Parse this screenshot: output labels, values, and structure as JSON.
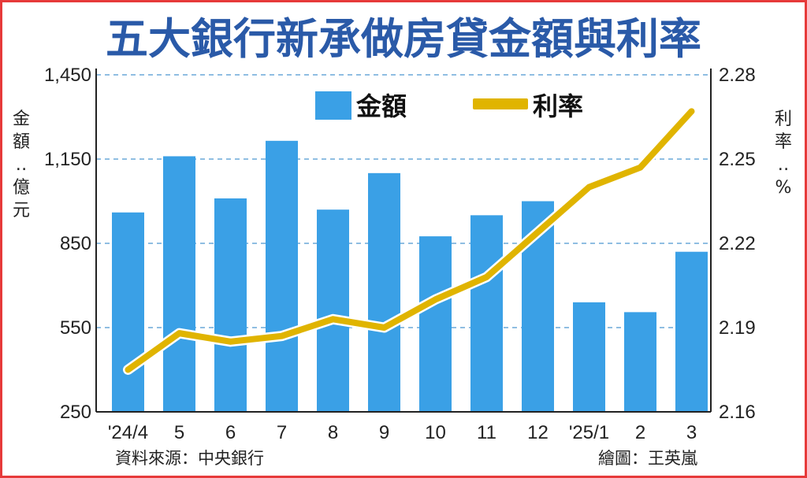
{
  "chart_data": {
    "type": "bar",
    "title": "五大銀行新承做房貸金額與利率",
    "categories": [
      "'24/4",
      "5",
      "6",
      "7",
      "8",
      "9",
      "10",
      "11",
      "12",
      "'25/1",
      "2",
      "3"
    ],
    "series": [
      {
        "name": "金額",
        "type": "bar",
        "axis": "left",
        "color": "#3aa0e6",
        "values": [
          960,
          1160,
          1010,
          1215,
          970,
          1100,
          875,
          950,
          1000,
          640,
          605,
          820
        ]
      },
      {
        "name": "利率",
        "type": "line",
        "axis": "right",
        "color": "#e0b400",
        "values": [
          2.175,
          2.188,
          2.185,
          2.187,
          2.193,
          2.19,
          2.2,
          2.208,
          2.224,
          2.24,
          2.247,
          2.267
        ]
      }
    ],
    "left_axis": {
      "label": "金額：億元",
      "ylim": [
        250,
        1450
      ],
      "ticks": [
        250,
        550,
        850,
        1150,
        1450
      ],
      "tick_labels": [
        "250",
        "550",
        "850",
        "1,150",
        "1,450"
      ]
    },
    "right_axis": {
      "label": "利率：%",
      "ylim": [
        2.16,
        2.28
      ],
      "ticks": [
        2.16,
        2.19,
        2.22,
        2.25,
        2.28
      ],
      "tick_labels": [
        "2.16",
        "2.19",
        "2.22",
        "2.25",
        "2.28"
      ]
    },
    "grid": "dashed-horizontal",
    "legend": "top-center",
    "source": "資料來源：中央銀行",
    "credit": "繪圖：王英嵐"
  }
}
